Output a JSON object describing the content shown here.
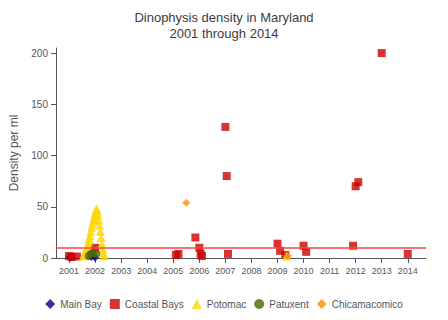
{
  "chart_data": {
    "type": "scatter",
    "title": "Dinophysis density in Maryland\n2001 through 2014",
    "ylabel": "Density per ml",
    "xlim": [
      2000.5,
      2014.7
    ],
    "xticks": [
      2001,
      2002,
      2003,
      2004,
      2005,
      2006,
      2007,
      2008,
      2009,
      2010,
      2011,
      2012,
      2013,
      2014
    ],
    "ylim": [
      0,
      205
    ],
    "yticks": [
      0,
      50,
      100,
      150,
      200
    ],
    "grid": false,
    "legend": "bottom",
    "hlines": [
      {
        "y": 10,
        "color": "#ff4444"
      }
    ],
    "series": [
      {
        "name": "Main Bay",
        "color": "#00008b",
        "marker": "diamond",
        "x": [
          2001.0,
          2001.05,
          2001.1,
          2001.85,
          2002.0
        ],
        "values": [
          1,
          0.5,
          0.8,
          1,
          0.5
        ]
      },
      {
        "name": "Coastal Bays",
        "color": "#cc0000",
        "marker": "square",
        "x": [
          2001.0,
          2001.1,
          2001.3,
          2002.0,
          2005.1,
          2005.2,
          2005.85,
          2006.0,
          2006.05,
          2006.1,
          2007.0,
          2007.05,
          2007.1,
          2009.0,
          2009.1,
          2009.3,
          2010.0,
          2010.1,
          2011.9,
          2012.0,
          2012.1,
          2013.0,
          2014.0
        ],
        "values": [
          2,
          1,
          1.5,
          10,
          3,
          4,
          20,
          10,
          4,
          2,
          128,
          80,
          4,
          14,
          7,
          3,
          12,
          6,
          12,
          70,
          74,
          200,
          4
        ]
      },
      {
        "name": "Potomac",
        "color": "#ffd700",
        "marker": "triangle",
        "x": [
          2001.55,
          2001.6,
          2001.63,
          2001.66,
          2001.69,
          2001.72,
          2001.75,
          2001.78,
          2001.81,
          2001.84,
          2001.87,
          2001.9,
          2001.93,
          2001.96,
          2001.99,
          2002.02,
          2002.05,
          2002.08,
          2002.11,
          2002.14,
          2002.17,
          2002.2,
          2002.23,
          2002.26,
          2002.29,
          2002.32,
          2002.35,
          2009.35
        ],
        "values": [
          2,
          4,
          6,
          8,
          10,
          13,
          16,
          19,
          22,
          26,
          30,
          33,
          36,
          39,
          42,
          45,
          48,
          46,
          42,
          37,
          32,
          26,
          20,
          14,
          9,
          5,
          2,
          2
        ]
      },
      {
        "name": "Patuxent",
        "color": "#4a6600",
        "marker": "circle",
        "x": [
          2001.75,
          2001.83,
          2001.91,
          2002.05
        ],
        "values": [
          2,
          4,
          5,
          4
        ]
      },
      {
        "name": "Chicamacomico",
        "color": "#ff8c00",
        "marker": "diamond",
        "x": [
          2005.5,
          2009.4
        ],
        "values": [
          54,
          2
        ]
      }
    ]
  }
}
